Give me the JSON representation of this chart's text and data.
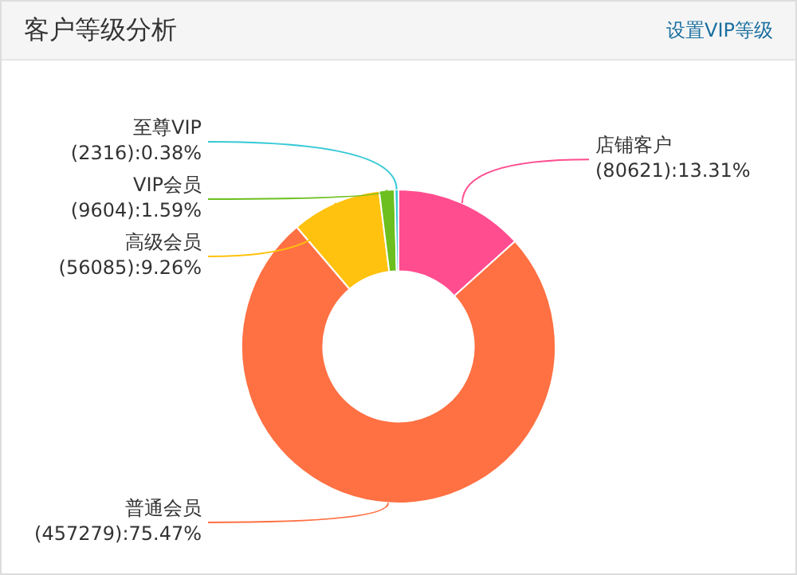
{
  "chart_data": {
    "type": "donut",
    "title": "客户等级分析",
    "annotations": [
      "设置VIP等级"
    ],
    "categories": [
      "店铺客户",
      "普通会员",
      "高级会员",
      "VIP会员",
      "至尊VIP"
    ],
    "values": [
      80621,
      457279,
      56085,
      9604,
      2316
    ],
    "colors": [
      "#ff4d8f",
      "#ff7043",
      "#ffc20e",
      "#6cbf1f",
      "#35c9d6"
    ],
    "value_labels": [
      "(80621):13.31%",
      "(457279):75.47%",
      "(56085):9.26%",
      "(9604):1.59%",
      "(2316):0.38%"
    ]
  }
}
